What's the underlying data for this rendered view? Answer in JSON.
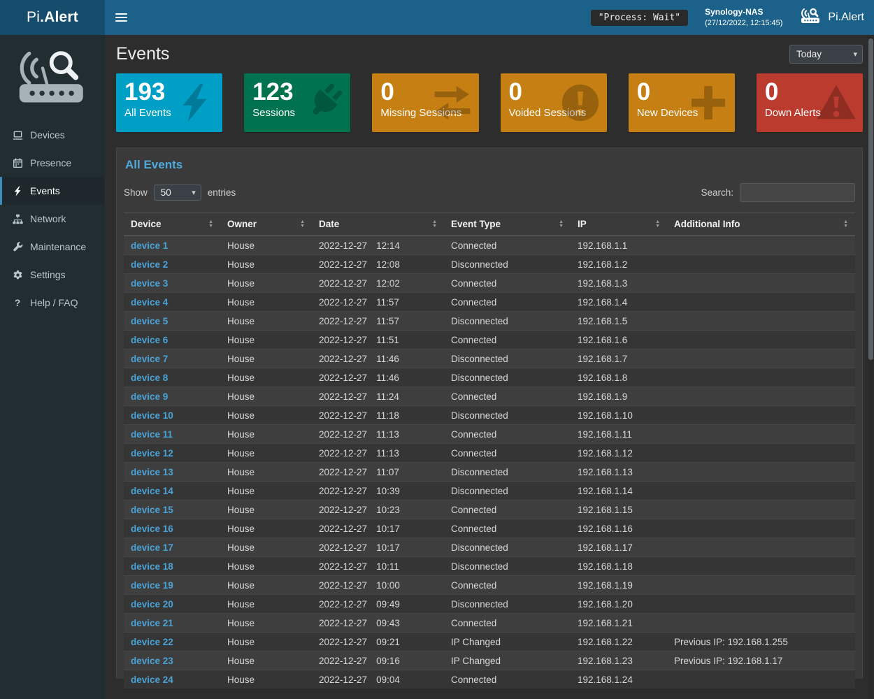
{
  "theme": {
    "navbar": "#1c6189",
    "navbar_dark": "#154c6c",
    "sidebar": "#222d32",
    "accent": "#3c8dbc",
    "link": "#4aa3d6"
  },
  "topbar": {
    "brand_prefix": "Pi",
    "brand_suffix": ".Alert",
    "process_status": "\"Process: Wait\"",
    "host_name": "Synology-NAS",
    "host_timestamp": "(27/12/2022, 12:15:45)",
    "app_name": "Pi.Alert"
  },
  "sidebar": {
    "items": [
      {
        "label": "Devices",
        "icon": "laptop-icon",
        "active": false
      },
      {
        "label": "Presence",
        "icon": "calendar-icon",
        "active": false
      },
      {
        "label": "Events",
        "icon": "bolt-icon",
        "active": true
      },
      {
        "label": "Network",
        "icon": "sitemap-icon",
        "active": false
      },
      {
        "label": "Maintenance",
        "icon": "wrench-icon",
        "active": false
      },
      {
        "label": "Settings",
        "icon": "gear-icon",
        "active": false
      },
      {
        "label": "Help / FAQ",
        "icon": "question-icon",
        "active": false
      }
    ]
  },
  "page": {
    "title": "Events",
    "period": "Today"
  },
  "cards": [
    {
      "value": "193",
      "label": "All Events",
      "color": "#009fc6",
      "icon": "bolt-icon"
    },
    {
      "value": "123",
      "label": "Sessions",
      "color": "#00734e",
      "icon": "plug-icon"
    },
    {
      "value": "0",
      "label": "Missing Sessions",
      "color": "#c57f12",
      "icon": "exchange-arrows-icon"
    },
    {
      "value": "0",
      "label": "Voided Sessions",
      "color": "#c57f12",
      "icon": "exclamation-circle-icon"
    },
    {
      "value": "0",
      "label": "New Devices",
      "color": "#c57f12",
      "icon": "plus-icon"
    },
    {
      "value": "0",
      "label": "Down Alerts",
      "color": "#bb3b2e",
      "icon": "warning-triangle-icon"
    }
  ],
  "panel": {
    "title": "All Events",
    "show_label": "Show",
    "entries_label": "entries",
    "page_size": "50",
    "search_label": "Search:",
    "search_value": ""
  },
  "table": {
    "columns": [
      "Device",
      "Owner",
      "Date",
      "Event Type",
      "IP",
      "Additional Info"
    ],
    "rows": [
      {
        "device": "device 1",
        "owner": "House",
        "date": "2022-12-27",
        "time": "12:14",
        "event_type": "Connected",
        "ip": "192.168.1.1",
        "info": ""
      },
      {
        "device": "device 2",
        "owner": "House",
        "date": "2022-12-27",
        "time": "12:08",
        "event_type": "Disconnected",
        "ip": "192.168.1.2",
        "info": ""
      },
      {
        "device": "device 3",
        "owner": "House",
        "date": "2022-12-27",
        "time": "12:02",
        "event_type": "Connected",
        "ip": "192.168.1.3",
        "info": ""
      },
      {
        "device": "device 4",
        "owner": "House",
        "date": "2022-12-27",
        "time": "11:57",
        "event_type": "Connected",
        "ip": "192.168.1.4",
        "info": ""
      },
      {
        "device": "device 5",
        "owner": "House",
        "date": "2022-12-27",
        "time": "11:57",
        "event_type": "Disconnected",
        "ip": "192.168.1.5",
        "info": ""
      },
      {
        "device": "device 6",
        "owner": "House",
        "date": "2022-12-27",
        "time": "11:51",
        "event_type": "Connected",
        "ip": "192.168.1.6",
        "info": ""
      },
      {
        "device": "device 7",
        "owner": "House",
        "date": "2022-12-27",
        "time": "11:46",
        "event_type": "Disconnected",
        "ip": "192.168.1.7",
        "info": ""
      },
      {
        "device": "device 8",
        "owner": "House",
        "date": "2022-12-27",
        "time": "11:46",
        "event_type": "Disconnected",
        "ip": "192.168.1.8",
        "info": ""
      },
      {
        "device": "device 9",
        "owner": "House",
        "date": "2022-12-27",
        "time": "11:24",
        "event_type": "Connected",
        "ip": "192.168.1.9",
        "info": ""
      },
      {
        "device": "device 10",
        "owner": "House",
        "date": "2022-12-27",
        "time": "11:18",
        "event_type": "Disconnected",
        "ip": "192.168.1.10",
        "info": ""
      },
      {
        "device": "device 11",
        "owner": "House",
        "date": "2022-12-27",
        "time": "11:13",
        "event_type": "Connected",
        "ip": "192.168.1.11",
        "info": ""
      },
      {
        "device": "device 12",
        "owner": "House",
        "date": "2022-12-27",
        "time": "11:13",
        "event_type": "Connected",
        "ip": "192.168.1.12",
        "info": ""
      },
      {
        "device": "device 13",
        "owner": "House",
        "date": "2022-12-27",
        "time": "11:07",
        "event_type": "Disconnected",
        "ip": "192.168.1.13",
        "info": ""
      },
      {
        "device": "device 14",
        "owner": "House",
        "date": "2022-12-27",
        "time": "10:39",
        "event_type": "Disconnected",
        "ip": "192.168.1.14",
        "info": ""
      },
      {
        "device": "device 15",
        "owner": "House",
        "date": "2022-12-27",
        "time": "10:23",
        "event_type": "Connected",
        "ip": "192.168.1.15",
        "info": ""
      },
      {
        "device": "device 16",
        "owner": "House",
        "date": "2022-12-27",
        "time": "10:17",
        "event_type": "Connected",
        "ip": "192.168.1.16",
        "info": ""
      },
      {
        "device": "device 17",
        "owner": "House",
        "date": "2022-12-27",
        "time": "10:17",
        "event_type": "Disconnected",
        "ip": "192.168.1.17",
        "info": ""
      },
      {
        "device": "device 18",
        "owner": "House",
        "date": "2022-12-27",
        "time": "10:11",
        "event_type": "Disconnected",
        "ip": "192.168.1.18",
        "info": ""
      },
      {
        "device": "device 19",
        "owner": "House",
        "date": "2022-12-27",
        "time": "10:00",
        "event_type": "Connected",
        "ip": "192.168.1.19",
        "info": ""
      },
      {
        "device": "device 20",
        "owner": "House",
        "date": "2022-12-27",
        "time": "09:49",
        "event_type": "Disconnected",
        "ip": "192.168.1.20",
        "info": ""
      },
      {
        "device": "device 21",
        "owner": "House",
        "date": "2022-12-27",
        "time": "09:43",
        "event_type": "Connected",
        "ip": "192.168.1.21",
        "info": ""
      },
      {
        "device": "device 22",
        "owner": "House",
        "date": "2022-12-27",
        "time": "09:21",
        "event_type": "IP Changed",
        "ip": "192.168.1.22",
        "info": "Previous IP: 192.168.1.255"
      },
      {
        "device": "device 23",
        "owner": "House",
        "date": "2022-12-27",
        "time": "09:16",
        "event_type": "IP Changed",
        "ip": "192.168.1.23",
        "info": "Previous IP: 192.168.1.17"
      },
      {
        "device": "device 24",
        "owner": "House",
        "date": "2022-12-27",
        "time": "09:04",
        "event_type": "Connected",
        "ip": "192.168.1.24",
        "info": ""
      }
    ]
  }
}
